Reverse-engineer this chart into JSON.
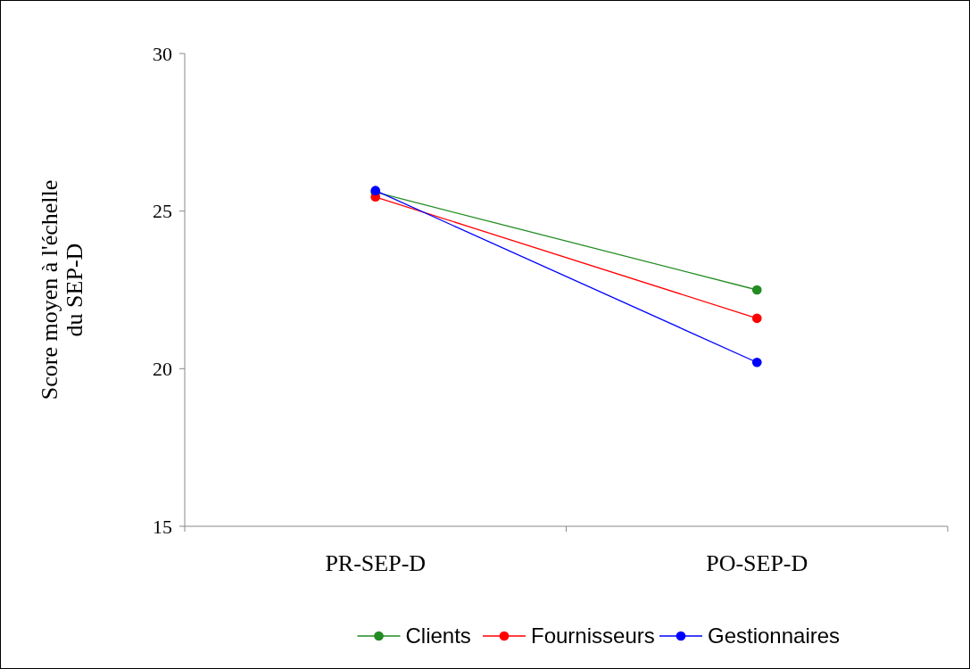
{
  "chart_data": {
    "type": "line",
    "ylabel": "Score moyen à l'échelle du SEP-D",
    "categories": [
      "PR-SEP-D",
      "PO-SEP-D"
    ],
    "series": [
      {
        "name": "Clients",
        "color": "#228b22",
        "values": [
          25.6,
          22.5
        ]
      },
      {
        "name": "Fournisseurs",
        "color": "#ff0000",
        "values": [
          25.45,
          21.6
        ]
      },
      {
        "name": "Gestionnaires",
        "color": "#0000ff",
        "values": [
          25.65,
          20.2
        ]
      }
    ],
    "ylim": [
      15,
      30
    ],
    "yticks": [
      15,
      20,
      25,
      30
    ],
    "grid": false,
    "legend": "bottom",
    "marker": "circle",
    "line_style": "solid"
  }
}
